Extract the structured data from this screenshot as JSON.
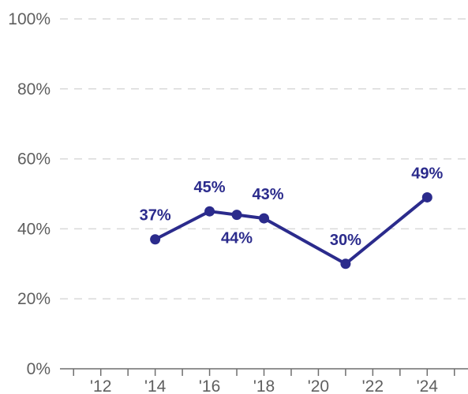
{
  "chart_data": {
    "type": "line",
    "title": "",
    "xlabel": "",
    "ylabel": "",
    "xlim": [
      2010.5,
      2025.5
    ],
    "ylim": [
      0,
      100
    ],
    "grid": true,
    "legend": "none",
    "x_ticks": [
      2012,
      2014,
      2016,
      2018,
      2020,
      2022,
      2024
    ],
    "x_tick_labels": [
      "'12",
      "'14",
      "'16",
      "'18",
      "'20",
      "'22",
      "'24"
    ],
    "y_ticks": [
      0,
      20,
      40,
      60,
      80,
      100
    ],
    "y_tick_labels": [
      "0%",
      "20%",
      "40%",
      "60%",
      "80%",
      "100%"
    ],
    "series": [
      {
        "color": "#2b2b8c",
        "x": [
          2014,
          2016,
          2017,
          2018,
          2021,
          2024
        ],
        "values": [
          37,
          45,
          44,
          43,
          30,
          49
        ],
        "labels": [
          "37%",
          "45%",
          "44%",
          "43%",
          "30%",
          "49%"
        ]
      }
    ],
    "colors": {
      "series": "#2b2b8c",
      "grid": "#d9d9d9",
      "axis": "#6e6e6e",
      "tick_text": "#5f5f5f"
    }
  }
}
